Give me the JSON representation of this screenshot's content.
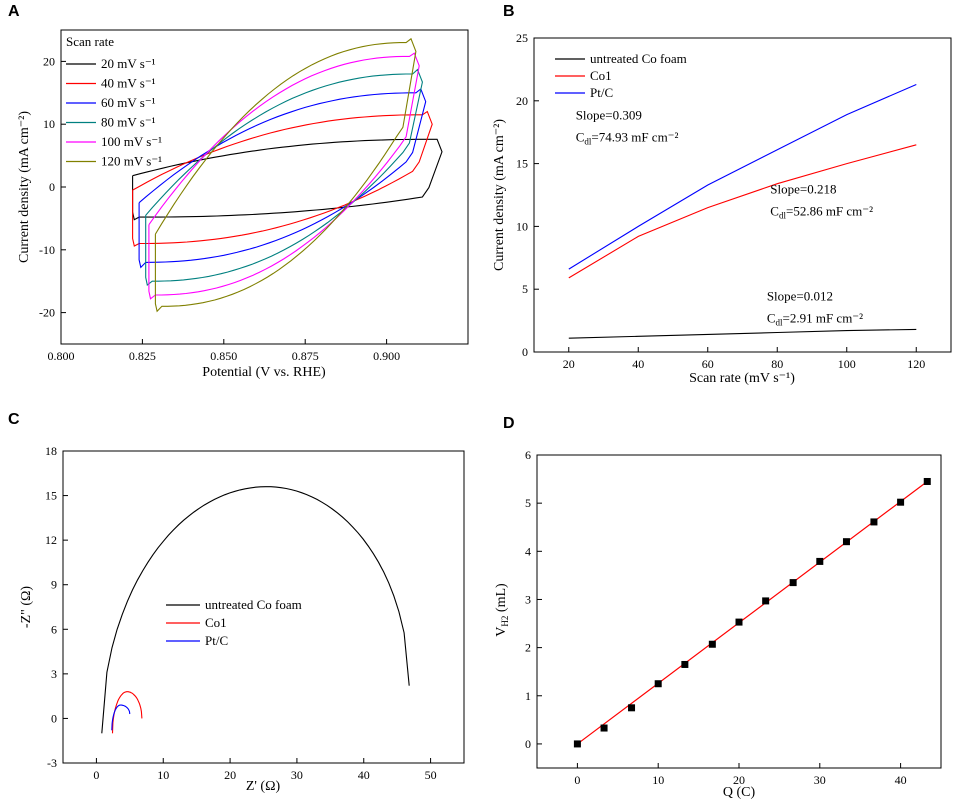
{
  "chart_data": [
    {
      "panel": "A",
      "type": "line",
      "xlabel": "Potential (V vs. RHE)",
      "ylabel": "Current density (mA cm⁻²)",
      "xlim": [
        0.8,
        0.925
      ],
      "ylim": [
        -25,
        25
      ],
      "xticks": [
        0.8,
        0.825,
        0.85,
        0.875,
        0.9
      ],
      "xtick_labels": [
        "0.800",
        "0.825",
        "0.850",
        "0.875",
        "0.900"
      ],
      "yticks": [
        -20,
        -10,
        0,
        10,
        20
      ],
      "ytick_labels": [
        "-20",
        "-10",
        "0",
        "10",
        "20"
      ],
      "legend_title": "Scan rate",
      "legend_position": "top-left",
      "series": [
        {
          "name": "20 mV s⁻¹",
          "color": "#000000",
          "x_min": 0.822,
          "x_max": 0.917,
          "upper_start": 1.8,
          "upper_end": 7.6,
          "lower_start": -4.8,
          "lower_end": -1.6,
          "y_top_right": 7.6,
          "y_bottom_left": -5.2
        },
        {
          "name": "40 mV s⁻¹",
          "color": "#ff0000",
          "x_min": 0.822,
          "x_max": 0.914,
          "upper_start": -0.5,
          "upper_end": 11.5,
          "lower_start": -9.0,
          "lower_end": 2.5,
          "y_top_right": 12.0,
          "y_bottom_left": -9.4
        },
        {
          "name": "60 mV s⁻¹",
          "color": "#0000ff",
          "x_min": 0.824,
          "x_max": 0.912,
          "upper_start": -2.5,
          "upper_end": 15.0,
          "lower_start": -12.0,
          "lower_end": 4.0,
          "y_top_right": 15.6,
          "y_bottom_left": -12.8
        },
        {
          "name": "80 mV s⁻¹",
          "color": "#008080",
          "x_min": 0.826,
          "x_max": 0.911,
          "upper_start": -4.5,
          "upper_end": 18.0,
          "lower_start": -15.0,
          "lower_end": 5.5,
          "y_top_right": 18.7,
          "y_bottom_left": -15.6
        },
        {
          "name": "100 mV s⁻¹",
          "color": "#ff00ff",
          "x_min": 0.827,
          "x_max": 0.91,
          "upper_start": -6.0,
          "upper_end": 20.8,
          "lower_start": -17.2,
          "lower_end": 6.5,
          "y_top_right": 21.3,
          "y_bottom_left": -17.8
        },
        {
          "name": "120 mV s⁻¹",
          "color": "#808000",
          "x_min": 0.829,
          "x_max": 0.909,
          "upper_start": -7.5,
          "upper_end": 23.0,
          "lower_start": -19.0,
          "lower_end": 8.0,
          "y_top_right": 23.6,
          "y_bottom_left": -19.8
        }
      ]
    },
    {
      "panel": "B",
      "type": "line",
      "xlabel": "Scan rate (mV s⁻¹)",
      "ylabel": "Current density (mA cm⁻²)",
      "xlim": [
        10,
        130
      ],
      "ylim": [
        0,
        25
      ],
      "xticks": [
        20,
        40,
        60,
        80,
        100,
        120
      ],
      "xtick_labels": [
        "20",
        "40",
        "60",
        "80",
        "100",
        "120"
      ],
      "yticks": [
        0,
        5,
        10,
        15,
        20,
        25
      ],
      "ytick_labels": [
        "0",
        "5",
        "10",
        "15",
        "20",
        "25"
      ],
      "legend_position": "top-left",
      "x": [
        20,
        40,
        60,
        80,
        100,
        120
      ],
      "series": [
        {
          "name": "untreated Co foam",
          "color": "#000000",
          "values": [
            1.1,
            1.25,
            1.4,
            1.55,
            1.7,
            1.8
          ]
        },
        {
          "name": "Co1",
          "color": "#ff0000",
          "values": [
            5.9,
            9.2,
            11.5,
            13.4,
            15.0,
            16.5
          ]
        },
        {
          "name": "Pt/C",
          "color": "#0000ff",
          "values": [
            6.6,
            10.0,
            13.3,
            16.1,
            18.9,
            21.3
          ]
        }
      ],
      "annotations": [
        {
          "slope": "Slope=0.309",
          "cdl": "74.93 mF cm⁻²",
          "x": 22,
          "y": 18.5
        },
        {
          "slope": "Slope=0.218",
          "cdl": "52.86 mF cm⁻²",
          "x": 78,
          "y": 12.6
        },
        {
          "slope": "Slope=0.012",
          "cdl": "2.91 mF cm⁻²",
          "x": 77,
          "y": 4.1
        }
      ],
      "cdl_label": "C",
      "cdl_subscript": "dl",
      "cdl_eq": "="
    },
    {
      "panel": "C",
      "type": "line",
      "xlabel": "Z' (Ω)",
      "ylabel": "-Z\" (Ω)",
      "xlim": [
        -5,
        55
      ],
      "ylim": [
        -3,
        18
      ],
      "xticks": [
        0,
        10,
        20,
        30,
        40,
        50
      ],
      "xtick_labels": [
        "0",
        "10",
        "20",
        "30",
        "40",
        "50"
      ],
      "yticks": [
        -3,
        0,
        3,
        6,
        9,
        12,
        15,
        18
      ],
      "ytick_labels": [
        "-3",
        "0",
        "3",
        "6",
        "9",
        "12",
        "15",
        "18"
      ],
      "legend_position": "center-left",
      "series": [
        {
          "name": "untreated Co foam",
          "color": "#000000",
          "start": 0.8,
          "end": 46.8,
          "peak_x": 25.5,
          "peak_y": 15.6,
          "end_y": 2.2,
          "start_y": -1.0
        },
        {
          "name": "Co1",
          "color": "#ff0000",
          "start": 2.4,
          "end": 6.8,
          "peak_x": 4.6,
          "peak_y": 1.8,
          "end_y": 0.0,
          "start_y": -1.0
        },
        {
          "name": "Pt/C",
          "color": "#0000ff",
          "start": 2.3,
          "end": 5.0,
          "peak_x": 3.6,
          "peak_y": 0.9,
          "end_y": 0.3,
          "start_y": -0.8
        }
      ]
    },
    {
      "panel": "D",
      "type": "scatter",
      "xlabel": "Q (C)",
      "ylabel": "V",
      "ylabel_sub": "H2",
      "ylabel_unit": " (mL)",
      "xlim": [
        -5,
        45
      ],
      "ylim": [
        -0.5,
        6
      ],
      "xticks": [
        0,
        10,
        20,
        30,
        40
      ],
      "xtick_labels": [
        "0",
        "10",
        "20",
        "30",
        "40"
      ],
      "yticks": [
        0,
        1,
        2,
        3,
        4,
        5,
        6
      ],
      "ytick_labels": [
        "0",
        "1",
        "2",
        "3",
        "4",
        "5",
        "6"
      ],
      "fit_color": "#ff0000",
      "x": [
        0,
        3.3,
        6.7,
        10,
        13.3,
        16.7,
        20,
        23.3,
        26.7,
        30,
        33.3,
        36.7,
        40,
        43.3
      ],
      "y": [
        0,
        0.33,
        0.75,
        1.25,
        1.65,
        2.07,
        2.53,
        2.97,
        3.35,
        3.79,
        4.2,
        4.61,
        5.02,
        5.45
      ],
      "fit": {
        "x": [
          0,
          43.3
        ],
        "y": [
          0,
          5.45
        ]
      }
    }
  ]
}
